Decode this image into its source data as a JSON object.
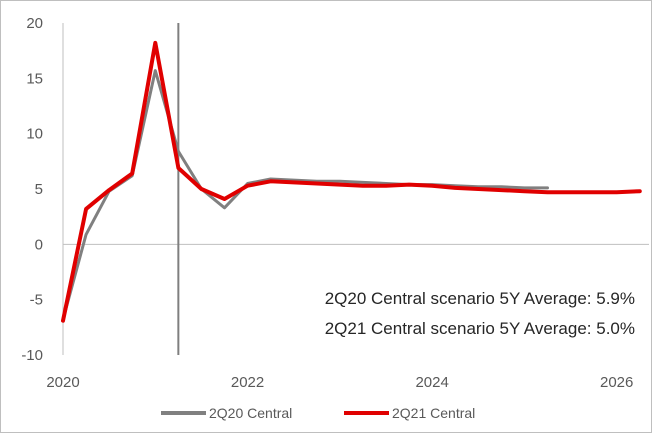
{
  "chart_data": {
    "type": "line",
    "title": "",
    "xlabel": "",
    "ylabel": "",
    "xlim": [
      2020,
      2026.35
    ],
    "ylim": [
      -10,
      20
    ],
    "x_ticks": [
      2020,
      2022,
      2024,
      2026
    ],
    "x_tick_labels": [
      "2020",
      "2022",
      "2024",
      "2026"
    ],
    "y_ticks": [
      -10,
      -5,
      0,
      5,
      10,
      15,
      20
    ],
    "y_tick_labels": [
      "-10",
      "-5",
      "0",
      "5",
      "10",
      "15",
      "20"
    ],
    "vertical_marker_x": 2021.25,
    "legend_position": "bottom",
    "grid": false,
    "annotations": [
      "2Q20 Central scenario 5Y Average: 5.9%",
      "2Q21 Central scenario 5Y Average: 5.0%"
    ],
    "series": [
      {
        "name": "2Q20 Central",
        "color": "#808080",
        "x": [
          2020.0,
          2020.25,
          2020.5,
          2020.75,
          2021.0,
          2021.25,
          2021.5,
          2021.75,
          2022.0,
          2022.25,
          2022.5,
          2022.75,
          2023.0,
          2023.25,
          2023.5,
          2023.75,
          2024.0,
          2024.25,
          2024.5,
          2024.75,
          2025.0,
          2025.25
        ],
        "values": [
          -6.8,
          0.9,
          4.8,
          6.2,
          15.7,
          8.4,
          5.0,
          3.3,
          5.5,
          5.9,
          5.8,
          5.7,
          5.7,
          5.6,
          5.5,
          5.4,
          5.4,
          5.3,
          5.2,
          5.2,
          5.1,
          5.1
        ]
      },
      {
        "name": "2Q21 Central",
        "color": "#e00000",
        "x": [
          2020.0,
          2020.25,
          2020.5,
          2020.75,
          2021.0,
          2021.25,
          2021.5,
          2021.75,
          2022.0,
          2022.25,
          2022.5,
          2022.75,
          2023.0,
          2023.25,
          2023.5,
          2023.75,
          2024.0,
          2024.25,
          2024.5,
          2024.75,
          2025.0,
          2025.25,
          2025.5,
          2025.75,
          2026.0,
          2026.25
        ],
        "values": [
          -6.9,
          3.2,
          4.9,
          6.4,
          18.2,
          6.9,
          5.0,
          4.1,
          5.3,
          5.7,
          5.6,
          5.5,
          5.4,
          5.3,
          5.3,
          5.4,
          5.3,
          5.1,
          5.0,
          4.9,
          4.8,
          4.7,
          4.7,
          4.7,
          4.7,
          4.8
        ]
      }
    ]
  }
}
